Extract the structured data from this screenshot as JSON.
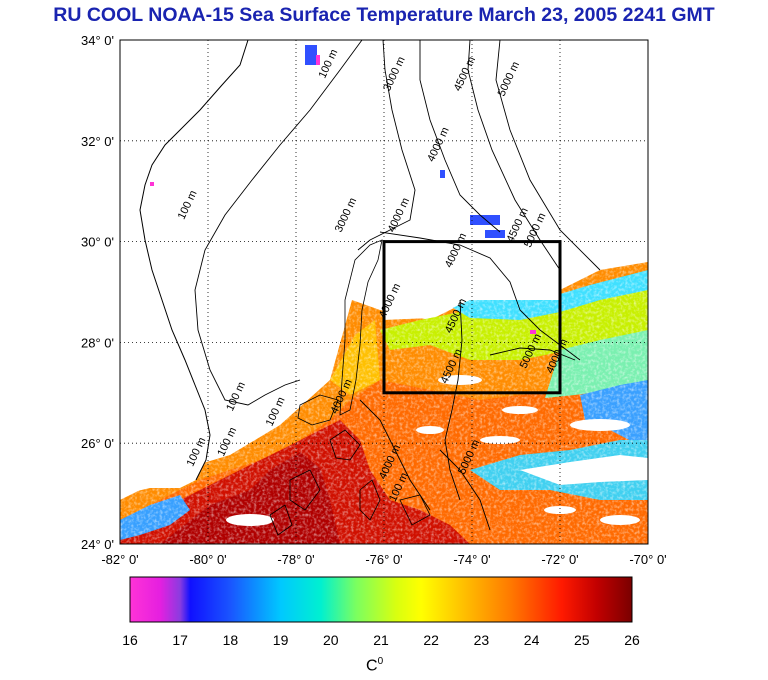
{
  "title": "RU COOL  NOAA-15 Sea Surface Temperature March 23, 2005 2241 GMT",
  "map": {
    "type": "sst-map",
    "lon_range": [
      -82,
      -70
    ],
    "lat_range": [
      24,
      34
    ],
    "grid": true,
    "lat_labels": [
      "34° 0'",
      "32° 0'",
      "30° 0'",
      "28° 0'",
      "26° 0'",
      "24° 0'"
    ],
    "lat_values": [
      34,
      32,
      30,
      28,
      26,
      24
    ],
    "lon_labels": [
      "-82° 0'",
      "-80° 0'",
      "-78° 0'",
      "-76° 0'",
      "-74° 0'",
      "-72° 0'",
      "-70° 0'"
    ],
    "lon_values": [
      -82,
      -80,
      -78,
      -76,
      -74,
      -72,
      -70
    ],
    "study_box": {
      "lon_min": -76,
      "lon_max": -72,
      "lat_min": 27,
      "lat_max": 30
    },
    "contour_labels": [
      {
        "text": "100 m",
        "lon": -77.2,
        "lat": 33.5
      },
      {
        "text": "3000 m",
        "lon": -75.7,
        "lat": 33.3
      },
      {
        "text": "4500 m",
        "lon": -74.1,
        "lat": 33.3
      },
      {
        "text": "5000 m",
        "lon": -73.1,
        "lat": 33.2
      },
      {
        "text": "4000 m",
        "lon": -74.7,
        "lat": 31.9
      },
      {
        "text": "100 m",
        "lon": -80.4,
        "lat": 30.7
      },
      {
        "text": "3000 m",
        "lon": -76.8,
        "lat": 30.5
      },
      {
        "text": "4000 m",
        "lon": -75.6,
        "lat": 30.5
      },
      {
        "text": "4500 m",
        "lon": -72.9,
        "lat": 30.3
      },
      {
        "text": "5000 m",
        "lon": -72.5,
        "lat": 30.2
      },
      {
        "text": "4000 m",
        "lon": -74.3,
        "lat": 29.8
      },
      {
        "text": "4000 m",
        "lon": -75.8,
        "lat": 28.8
      },
      {
        "text": "4500 m",
        "lon": -74.3,
        "lat": 28.5
      },
      {
        "text": "5000 m",
        "lon": -72.6,
        "lat": 27.8
      },
      {
        "text": "4000 m",
        "lon": -72.0,
        "lat": 27.7
      },
      {
        "text": "4500 m",
        "lon": -74.4,
        "lat": 27.5
      },
      {
        "text": "100 m",
        "lon": -79.3,
        "lat": 26.9
      },
      {
        "text": "100 m",
        "lon": -79.5,
        "lat": 26.0
      },
      {
        "text": "100 m",
        "lon": -80.2,
        "lat": 25.8
      },
      {
        "text": "100 m",
        "lon": -78.4,
        "lat": 26.6
      },
      {
        "text": "4000 m",
        "lon": -76.9,
        "lat": 26.9
      },
      {
        "text": "5000 m",
        "lon": -74.0,
        "lat": 25.7
      },
      {
        "text": "4000 m",
        "lon": -75.8,
        "lat": 25.6
      },
      {
        "text": "100 m",
        "lon": -75.6,
        "lat": 25.1
      }
    ]
  },
  "colorbar": {
    "min": 16,
    "max": 26,
    "tick_labels": [
      "16",
      "17",
      "18",
      "19",
      "20",
      "21",
      "22",
      "23",
      "24",
      "25",
      "26"
    ],
    "unit_base": "C",
    "unit_sup": "0"
  }
}
